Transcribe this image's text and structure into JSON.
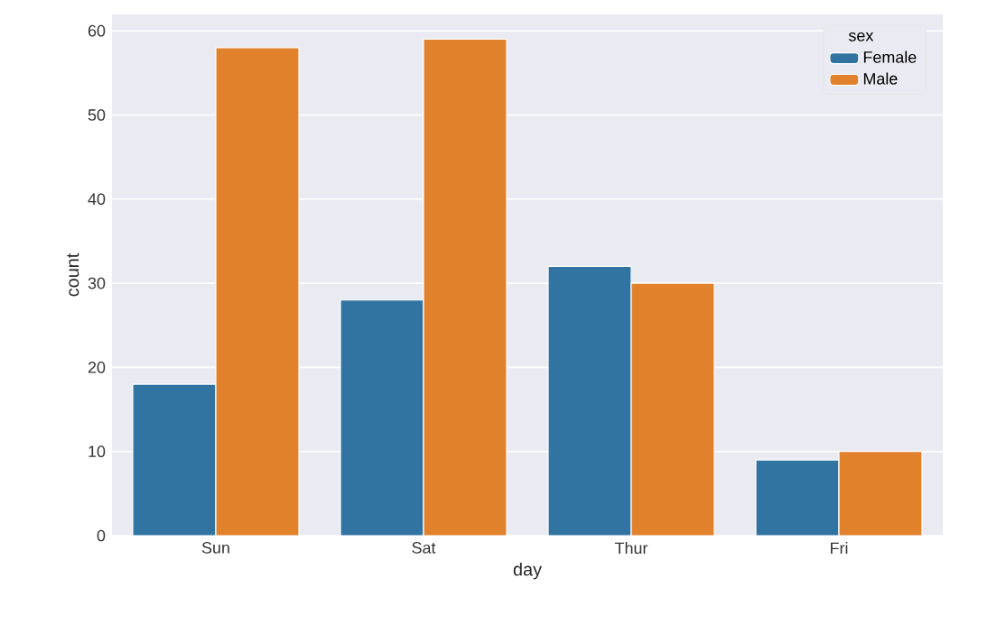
{
  "chart_data": {
    "type": "bar",
    "xlabel": "day",
    "ylabel": "count",
    "categories": [
      "Sun",
      "Sat",
      "Thur",
      "Fri"
    ],
    "series": [
      {
        "name": "Female",
        "color": "#3274a1",
        "values": [
          18,
          28,
          32,
          9
        ]
      },
      {
        "name": "Male",
        "color": "#e1812c",
        "values": [
          58,
          59,
          30,
          10
        ]
      }
    ],
    "legend_title": "sex",
    "legend": "top right",
    "grid": "y",
    "ylim": [
      0,
      61.95
    ],
    "yticks": [
      0,
      10,
      20,
      30,
      40,
      50,
      60
    ]
  }
}
